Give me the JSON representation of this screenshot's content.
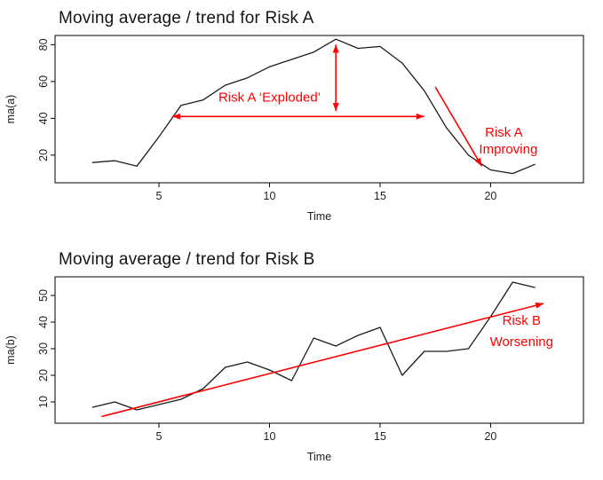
{
  "annotation_color": "#ff0000",
  "chart_data": [
    {
      "type": "line",
      "title": "Moving average / trend for Risk A",
      "xlabel": "Time",
      "ylabel": "ma(a)",
      "x": [
        2,
        3,
        4,
        5,
        6,
        7,
        8,
        9,
        10,
        11,
        12,
        13,
        14,
        15,
        16,
        17,
        18,
        19,
        20,
        21,
        22
      ],
      "values": [
        16,
        17,
        14,
        30,
        47,
        50,
        58,
        62,
        68,
        72,
        76,
        83,
        78,
        79,
        70,
        55,
        35,
        20,
        12,
        10,
        15
      ],
      "xlim": [
        0.3,
        24.2
      ],
      "ylim": [
        5,
        85
      ],
      "xticks": [
        5,
        10,
        15,
        20
      ],
      "yticks": [
        20,
        40,
        60,
        80
      ],
      "line_color": "#1c1c1c",
      "grid": false,
      "legend": "none",
      "annotations": [
        {
          "type": "text",
          "x": 10.0,
          "y": 49,
          "text": "Risk A ‘Exploded’",
          "anchor": "middle"
        },
        {
          "type": "arrow",
          "x1": 5.6,
          "y1": 41,
          "x2": 17.0,
          "y2": 41,
          "heads": "both"
        },
        {
          "type": "arrow",
          "x1": 13,
          "y1": 80,
          "x2": 13,
          "y2": 44,
          "heads": "both"
        },
        {
          "type": "arrow",
          "x1": 17.5,
          "y1": 57,
          "x2": 19.6,
          "y2": 14,
          "heads": "end"
        },
        {
          "type": "text",
          "x": 20.6,
          "y": 30,
          "text": "Risk A",
          "anchor": "middle"
        },
        {
          "type": "text",
          "x": 20.8,
          "y": 21,
          "text": "Improving",
          "anchor": "middle"
        }
      ]
    },
    {
      "type": "line",
      "title": "Moving average / trend for Risk B",
      "xlabel": "Time",
      "ylabel": "ma(b)",
      "x": [
        2,
        3,
        4,
        5,
        6,
        7,
        8,
        9,
        10,
        11,
        12,
        13,
        14,
        15,
        16,
        17,
        18,
        19,
        20,
        21,
        22
      ],
      "values": [
        8,
        10,
        7,
        9,
        11,
        15,
        23,
        25,
        22,
        18,
        34,
        31,
        35,
        38,
        20,
        29,
        29,
        30,
        42,
        55,
        53
      ],
      "xlim": [
        0.3,
        24.2
      ],
      "ylim": [
        2,
        57
      ],
      "xticks": [
        5,
        10,
        15,
        20
      ],
      "yticks": [
        10,
        20,
        30,
        40,
        50
      ],
      "line_color": "#1c1c1c",
      "grid": false,
      "legend": "none",
      "annotations": [
        {
          "type": "arrow",
          "x1": 2.4,
          "y1": 4.5,
          "x2": 22.4,
          "y2": 47,
          "heads": "end"
        },
        {
          "type": "text",
          "x": 21.4,
          "y": 39,
          "text": "Risk B",
          "anchor": "middle"
        },
        {
          "type": "text",
          "x": 21.4,
          "y": 31,
          "text": "Worsening",
          "anchor": "middle"
        }
      ]
    }
  ]
}
